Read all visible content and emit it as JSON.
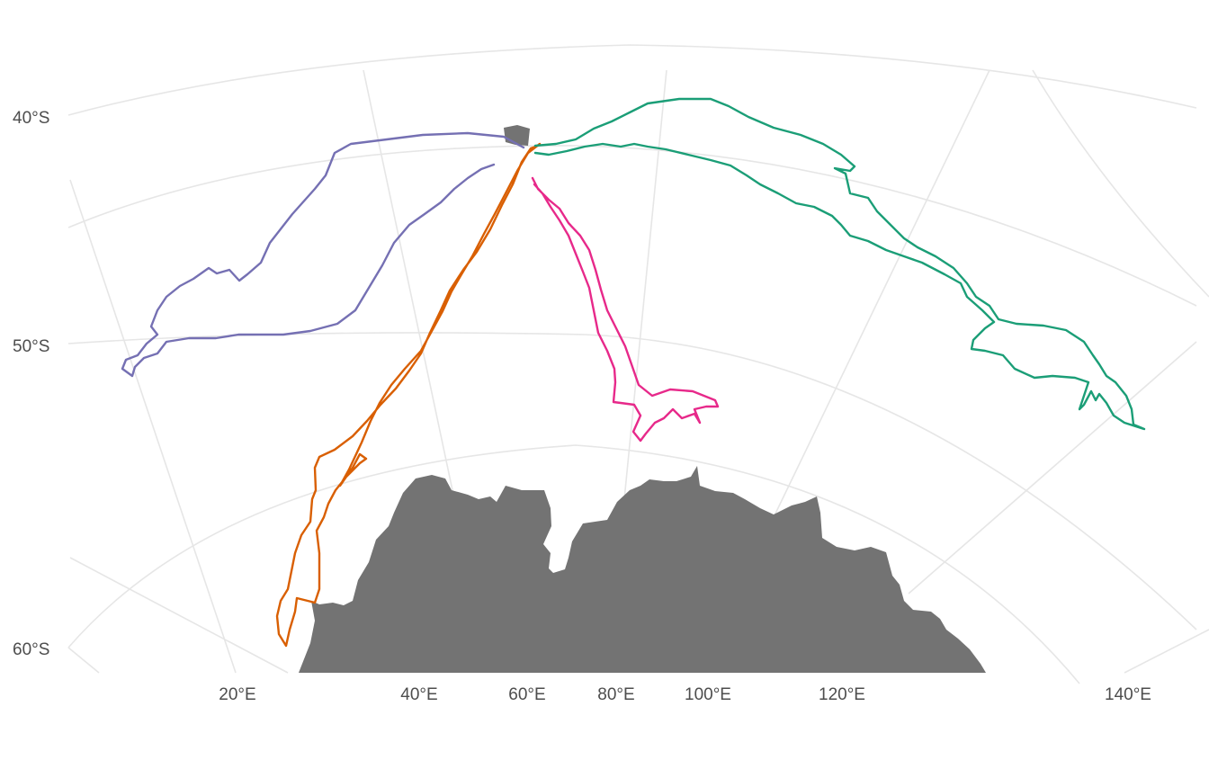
{
  "lat_labels": [
    "40°S",
    "50°S",
    "60°S"
  ],
  "lon_labels": [
    "20°E",
    "40°E",
    "60°E",
    "80°E",
    "100°E",
    "120°E",
    "140°E"
  ],
  "colors": {
    "grid": "#e6e6e6",
    "land": "#737373",
    "track_purple": "#7570b3",
    "track_orange": "#d95f02",
    "track_pink": "#e7298a",
    "track_green": "#1b9e77"
  }
}
